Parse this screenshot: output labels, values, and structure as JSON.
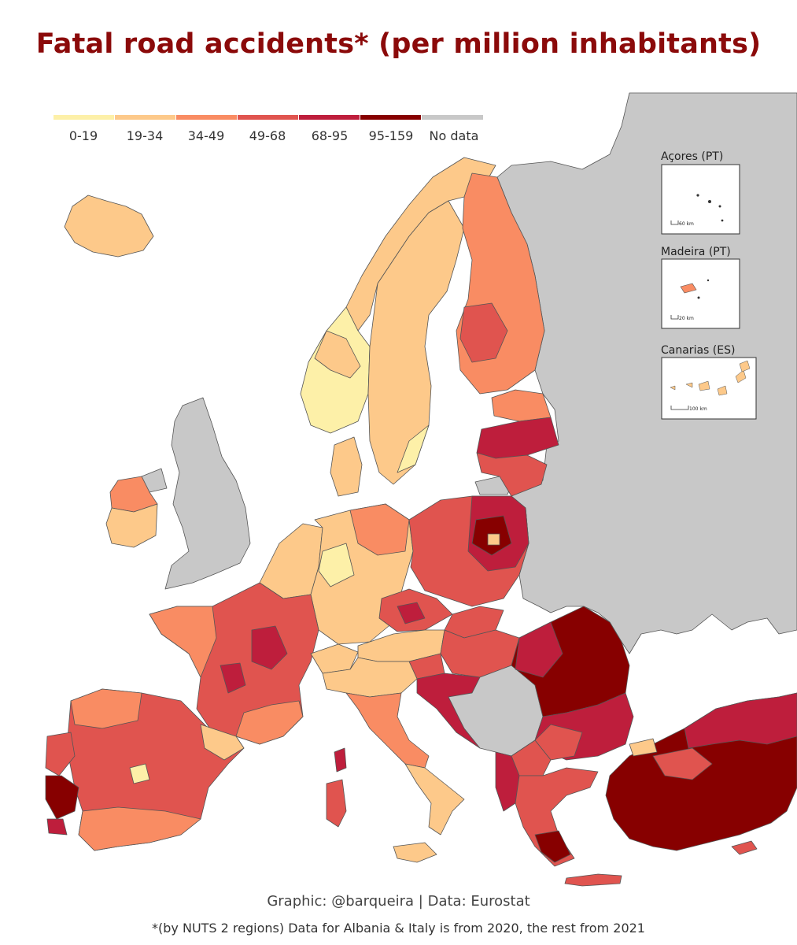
{
  "title": "Fatal road accidents* (per million inhabitants)",
  "legend": [
    {
      "label": "0-19",
      "color": "#fdf0a8"
    },
    {
      "label": "19-34",
      "color": "#fdc98a"
    },
    {
      "label": "34-49",
      "color": "#f98c63"
    },
    {
      "label": "49-68",
      "color": "#e0544f"
    },
    {
      "label": "68-95",
      "color": "#be1e3c"
    },
    {
      "label": "95-159",
      "color": "#870000"
    },
    {
      "label": "No data",
      "color": "#c8c8c8"
    }
  ],
  "insets": [
    {
      "label": "Açores (PT)",
      "scale": "60 km"
    },
    {
      "label": "Madeira (PT)",
      "scale": "20 km"
    },
    {
      "label": "Canarias (ES)",
      "scale": "100 km"
    }
  ],
  "credit": "Graphic: @barqueira | Data: Eurostat",
  "footnote": "*(by NUTS 2 regions) Data for Albania & Italy is from 2020, the rest from 2021"
}
